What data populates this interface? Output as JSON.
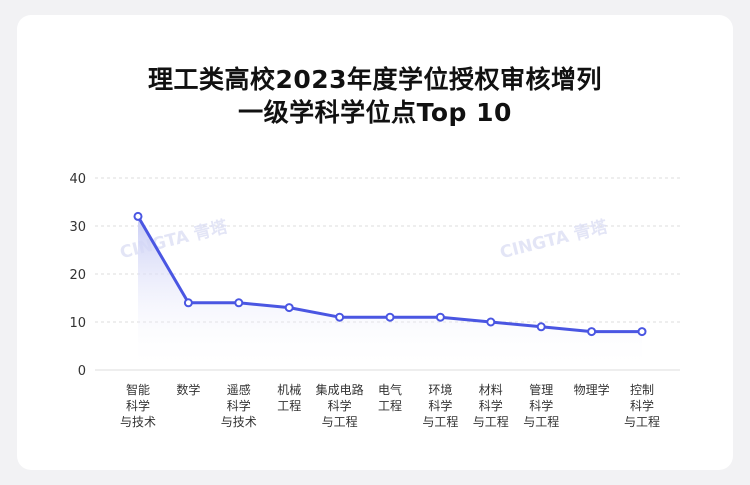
{
  "chart_data": {
    "type": "line",
    "title_lines": [
      "理工类高校2023年度学位授权审核增列",
      "一级学科学位点Top 10"
    ],
    "categories": [
      [
        "智能",
        "科学",
        "与技术"
      ],
      [
        "数学"
      ],
      [
        "遥感",
        "科学",
        "与技术"
      ],
      [
        "机械",
        "工程"
      ],
      [
        "集成电路",
        "科学",
        "与工程"
      ],
      [
        "电气",
        "工程"
      ],
      [
        "环境",
        "科学",
        "与工程"
      ],
      [
        "材料",
        "科学",
        "与工程"
      ],
      [
        "管理",
        "科学",
        "与工程"
      ],
      [
        "物理学"
      ],
      [
        "控制",
        "科学",
        "与工程"
      ]
    ],
    "values": [
      32,
      14,
      14,
      13,
      11,
      11,
      11,
      10,
      9,
      8,
      8
    ],
    "ylim": [
      0,
      40
    ],
    "yticks": [
      0,
      10,
      20,
      30,
      40
    ],
    "grid": true,
    "colors": {
      "line": "#4a56e2",
      "area_top": "#c9cdf5",
      "grid": "#dddddd",
      "tick": "#333333"
    }
  },
  "watermark": "CINGTA 青塔"
}
